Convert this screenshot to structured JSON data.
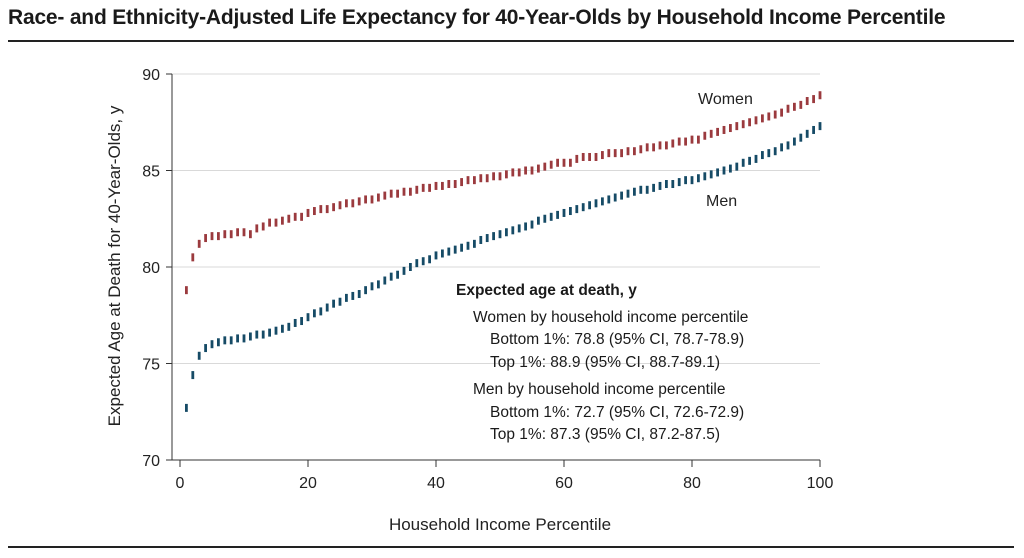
{
  "title": "Race- and Ethnicity-Adjusted Life Expectancy for 40-Year-Olds by Household Income Percentile",
  "chart_data": {
    "type": "scatter",
    "title": "Race- and Ethnicity-Adjusted Life Expectancy for 40-Year-Olds by Household Income Percentile",
    "xlabel": "Household Income Percentile",
    "ylabel": "Expected Age at Death for 40-Year-Olds, y",
    "xlim": [
      0,
      100
    ],
    "ylim": [
      70,
      90
    ],
    "xticks": [
      0,
      20,
      40,
      60,
      80,
      100
    ],
    "yticks": [
      70,
      75,
      80,
      85,
      90
    ],
    "grid": "horizontal",
    "x": [
      1,
      2,
      3,
      4,
      5,
      6,
      7,
      8,
      9,
      10,
      11,
      12,
      13,
      14,
      15,
      16,
      17,
      18,
      19,
      20,
      21,
      22,
      23,
      24,
      25,
      26,
      27,
      28,
      29,
      30,
      31,
      32,
      33,
      34,
      35,
      36,
      37,
      38,
      39,
      40,
      41,
      42,
      43,
      44,
      45,
      46,
      47,
      48,
      49,
      50,
      51,
      52,
      53,
      54,
      55,
      56,
      57,
      58,
      59,
      60,
      61,
      62,
      63,
      64,
      65,
      66,
      67,
      68,
      69,
      70,
      71,
      72,
      73,
      74,
      75,
      76,
      77,
      78,
      79,
      80,
      81,
      82,
      83,
      84,
      85,
      86,
      87,
      88,
      89,
      90,
      91,
      92,
      93,
      94,
      95,
      96,
      97,
      98,
      99,
      100
    ],
    "series": [
      {
        "name": "Women",
        "color": "#9b3a3e",
        "values": [
          78.8,
          80.5,
          81.2,
          81.5,
          81.6,
          81.6,
          81.7,
          81.7,
          81.8,
          81.8,
          81.7,
          82.0,
          82.1,
          82.3,
          82.3,
          82.4,
          82.5,
          82.6,
          82.6,
          82.8,
          82.9,
          83.0,
          83.0,
          83.1,
          83.2,
          83.3,
          83.3,
          83.4,
          83.5,
          83.5,
          83.6,
          83.7,
          83.8,
          83.8,
          83.9,
          83.9,
          84.0,
          84.1,
          84.1,
          84.2,
          84.2,
          84.3,
          84.3,
          84.4,
          84.5,
          84.5,
          84.6,
          84.6,
          84.7,
          84.7,
          84.8,
          84.9,
          84.9,
          85.0,
          85.0,
          85.1,
          85.2,
          85.3,
          85.4,
          85.4,
          85.4,
          85.6,
          85.7,
          85.7,
          85.7,
          85.8,
          85.9,
          85.9,
          85.9,
          86.0,
          86.0,
          86.1,
          86.2,
          86.2,
          86.3,
          86.3,
          86.4,
          86.5,
          86.5,
          86.6,
          86.6,
          86.8,
          86.9,
          87.0,
          87.1,
          87.2,
          87.3,
          87.4,
          87.5,
          87.6,
          87.7,
          87.8,
          87.9,
          88.0,
          88.2,
          88.3,
          88.4,
          88.6,
          88.7,
          88.9
        ]
      },
      {
        "name": "Men",
        "color": "#164b66",
        "values": [
          72.7,
          74.4,
          75.4,
          75.8,
          76.0,
          76.1,
          76.2,
          76.2,
          76.3,
          76.3,
          76.4,
          76.5,
          76.5,
          76.6,
          76.7,
          76.8,
          76.9,
          77.1,
          77.2,
          77.4,
          77.6,
          77.7,
          77.9,
          78.1,
          78.2,
          78.4,
          78.5,
          78.6,
          78.8,
          79.0,
          79.1,
          79.3,
          79.5,
          79.6,
          79.8,
          80.0,
          80.2,
          80.3,
          80.4,
          80.6,
          80.7,
          80.8,
          80.9,
          81.0,
          81.1,
          81.2,
          81.4,
          81.5,
          81.6,
          81.7,
          81.8,
          81.9,
          82.0,
          82.1,
          82.2,
          82.4,
          82.5,
          82.6,
          82.7,
          82.8,
          82.9,
          83.0,
          83.1,
          83.2,
          83.3,
          83.4,
          83.5,
          83.6,
          83.7,
          83.8,
          83.9,
          84.0,
          84.0,
          84.1,
          84.2,
          84.3,
          84.3,
          84.4,
          84.5,
          84.5,
          84.6,
          84.7,
          84.8,
          84.9,
          85.0,
          85.1,
          85.2,
          85.4,
          85.5,
          85.6,
          85.8,
          85.9,
          86.0,
          86.2,
          86.3,
          86.5,
          86.7,
          86.9,
          87.1,
          87.3
        ]
      }
    ],
    "annotation": {
      "heading": "Expected age at death, y",
      "groups": [
        {
          "label": "Women by household income percentile",
          "lines": [
            "Bottom 1%: 78.8 (95% CI, 78.7-78.9)",
            "Top 1%: 88.9 (95% CI, 88.7-89.1)"
          ]
        },
        {
          "label": "Men by household income percentile",
          "lines": [
            "Bottom 1%: 72.7 (95% CI, 72.6-72.9)",
            "Top 1%: 87.3 (95% CI, 87.2-87.5)"
          ]
        }
      ]
    }
  }
}
